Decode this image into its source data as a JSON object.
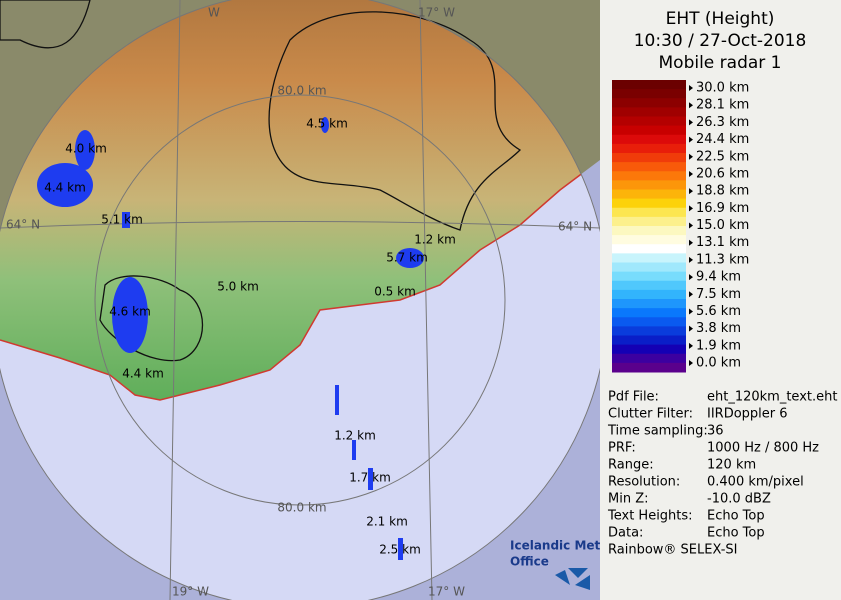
{
  "header": {
    "lines": [
      "EHT (Height)",
      "10:30 / 27-Oct-2018",
      "Mobile radar 1"
    ]
  },
  "legend": {
    "labels": [
      "30.0 km",
      "28.1 km",
      "26.3 km",
      "24.4 km",
      "22.5 km",
      "20.6 km",
      "18.8 km",
      "16.9 km",
      "15.0 km",
      "13.1 km",
      "11.3 km",
      "9.4 km",
      "7.5 km",
      "5.6 km",
      "3.8 km",
      "1.9 km",
      "0.0 km"
    ],
    "colors": [
      "#6b0000",
      "#7a0000",
      "#8c0000",
      "#a00000",
      "#b40000",
      "#c80000",
      "#dc0a0a",
      "#e81e0a",
      "#f03c0a",
      "#f85a0a",
      "#fc780a",
      "#fc960a",
      "#fcb40a",
      "#fcd20a",
      "#fce650",
      "#fcf08c",
      "#fcf8c0",
      "#fffce0",
      "#ffffff",
      "#c8f4fc",
      "#a0e8fc",
      "#78dcfc",
      "#50c8fc",
      "#32b4fc",
      "#1e96fc",
      "#0a78fc",
      "#0a5af0",
      "#0a3cdc",
      "#0a1ec8",
      "#1400b4",
      "#3c00a0",
      "#5a008c"
    ]
  },
  "info": {
    "rows": [
      [
        "Pdf File:",
        "eht_120km_text.eht"
      ],
      [
        "Clutter Filter:",
        "IIRDoppler 6"
      ],
      [
        "Time sampling:",
        "36"
      ],
      [
        "PRF:",
        "1000 Hz / 800 Hz"
      ],
      [
        "Range:",
        "120 km"
      ],
      [
        "Resolution:",
        "0.400 km/pixel"
      ],
      [
        "Min Z:",
        "-10.0 dBZ"
      ],
      [
        "Text Heights:",
        "Echo Top"
      ],
      [
        "Data:",
        "Echo Top"
      ]
    ],
    "footer": "Rainbow® SELEX-SI"
  },
  "map": {
    "ring_labels": [
      "80.0 km",
      "80.0 km"
    ],
    "lat_labels": [
      "64° N",
      "64° N"
    ],
    "lon_labels": [
      "W",
      "17° W",
      "19° W",
      "17° W"
    ],
    "echo_labels": [
      "4.5 km",
      "4.0 km",
      "4.4 km",
      "5.1 km",
      "1.2 km",
      "5.7 km",
      "5.0 km",
      "0.5 km",
      "4.6 km",
      "4.4 km",
      "1.2 km",
      "1.7 km",
      "2.1 km",
      "2.5 km"
    ],
    "logo": [
      "Icelandic Met",
      "Office"
    ]
  }
}
